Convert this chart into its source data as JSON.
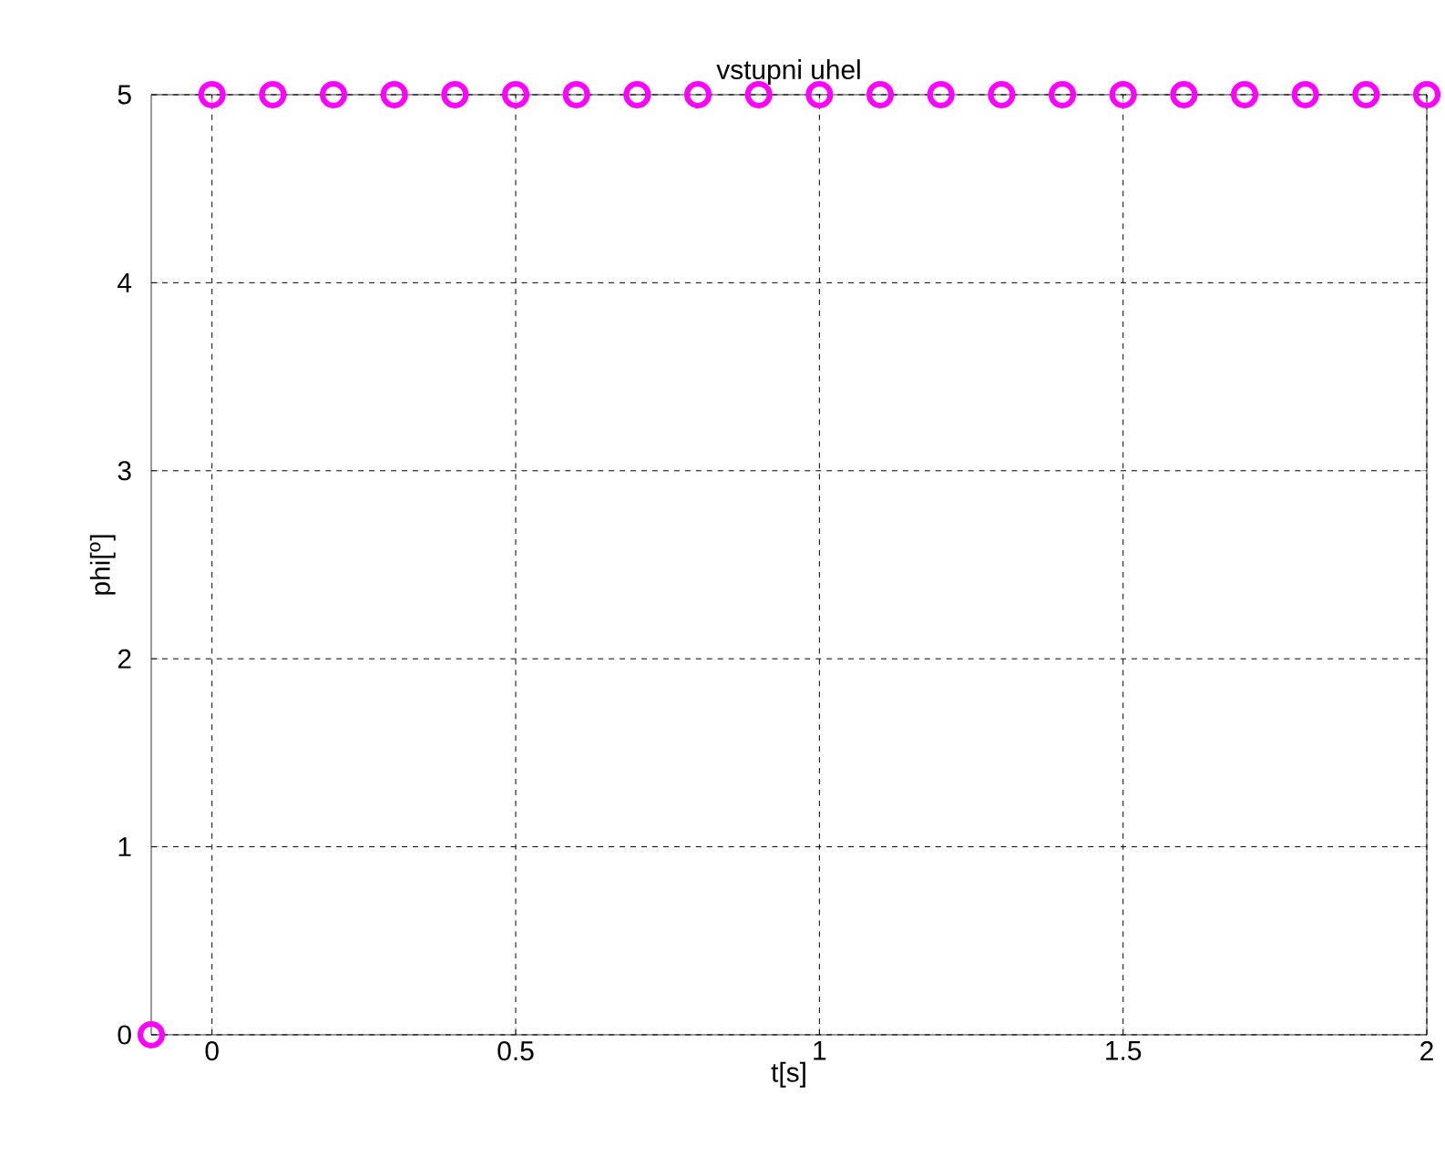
{
  "chart_data": {
    "type": "scatter",
    "title": "vstupni uhel",
    "xlabel": "t[s]",
    "ylabel": "phi[$^{o}$]",
    "x": [
      -0.1,
      0,
      0.1,
      0.2,
      0.3,
      0.4,
      0.5,
      0.6,
      0.7,
      0.8,
      0.9,
      1.0,
      1.1,
      1.2,
      1.3,
      1.4,
      1.5,
      1.6,
      1.7,
      1.8,
      1.9,
      2.0
    ],
    "values": [
      0,
      5,
      5,
      5,
      5,
      5,
      5,
      5,
      5,
      5,
      5,
      5,
      5,
      5,
      5,
      5,
      5,
      5,
      5,
      5,
      5,
      5
    ],
    "color": "#ff00ff",
    "marker": "circle",
    "xlim": [
      -0.1,
      2
    ],
    "ylim": [
      0,
      5
    ],
    "xticks": [
      0,
      0.5,
      1,
      1.5,
      2
    ],
    "yticks": [
      0,
      1,
      2,
      3,
      4,
      5
    ],
    "grid": true,
    "line_style": "dashed"
  }
}
